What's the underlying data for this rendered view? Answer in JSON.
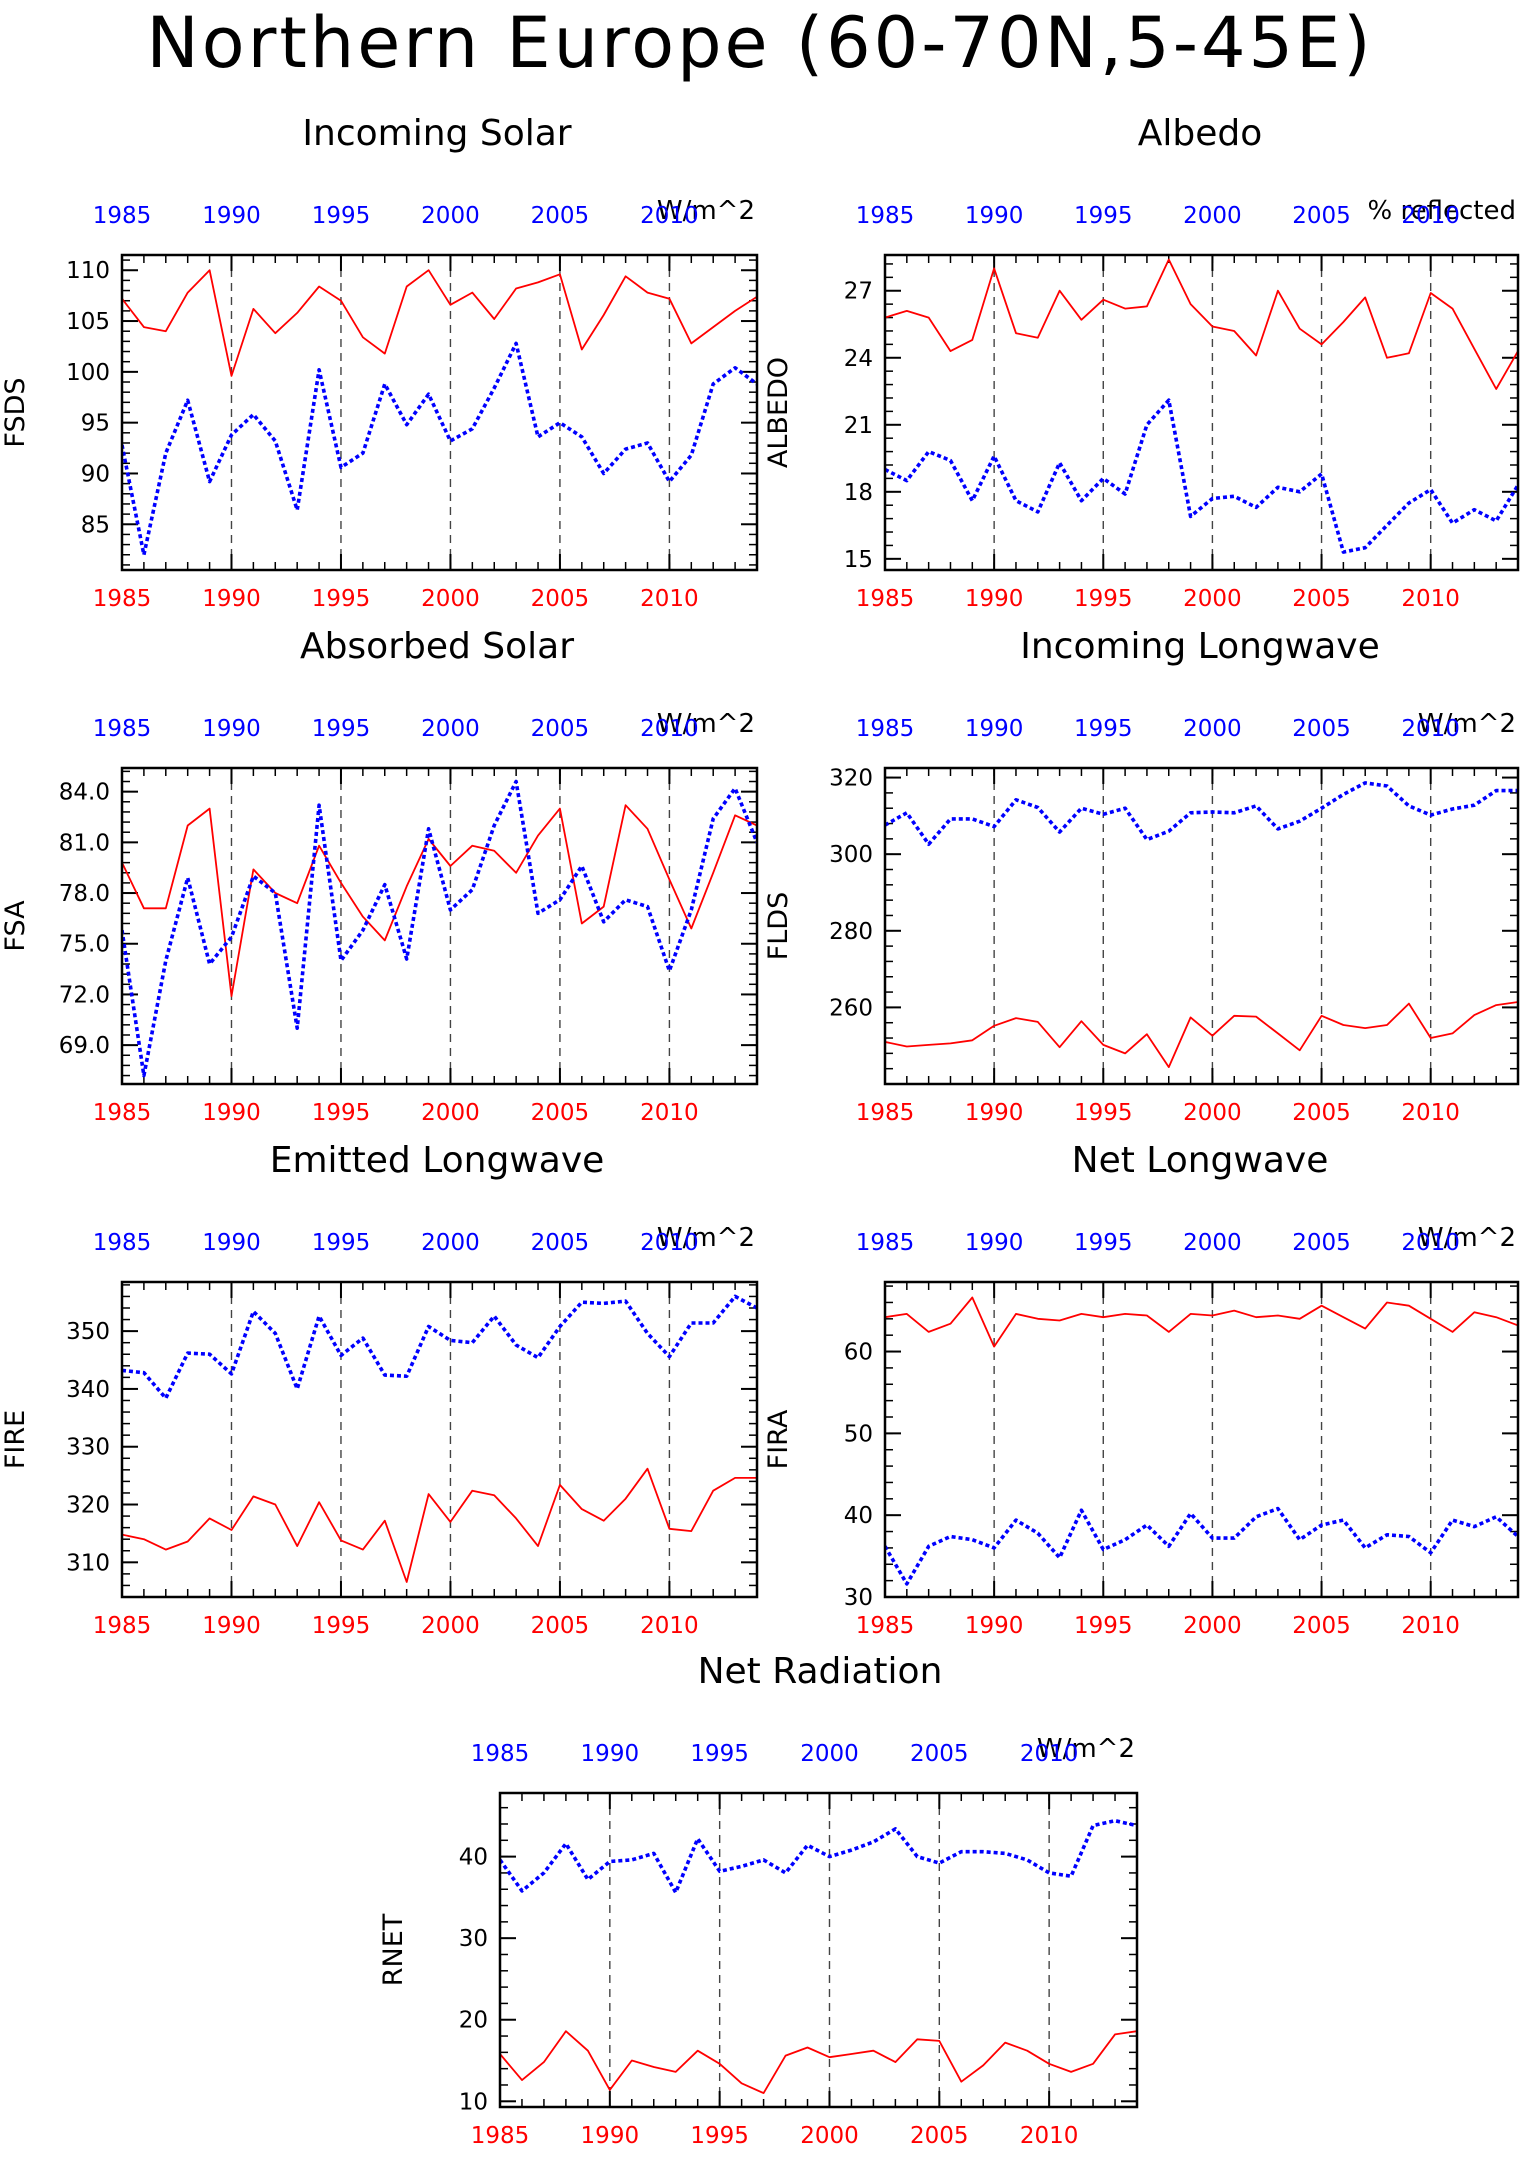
{
  "page": {
    "title": "Northern Europe (60-70N,5-45E)"
  },
  "colors": {
    "top_series": "#0000ff",
    "bottom_series": "#ff0000",
    "axis": "#000000"
  },
  "chart_data": [
    {
      "id": "fsds",
      "type": "line",
      "title": "Incoming Solar",
      "ylabel": "FSDS",
      "units": "W/m^2",
      "x_ticks": [
        1985,
        1990,
        1995,
        2000,
        2005,
        2010
      ],
      "xlim": [
        1985,
        2014
      ],
      "y_ticks": [
        85,
        90,
        95,
        100,
        105,
        110
      ],
      "ylim": [
        80.5,
        111.5
      ],
      "x": [
        1985,
        1986,
        1987,
        1988,
        1989,
        1990,
        1991,
        1992,
        1993,
        1994,
        1995,
        1996,
        1997,
        1998,
        1999,
        2000,
        2001,
        2002,
        2003,
        2004,
        2005,
        2006,
        2007,
        2008,
        2009,
        2010,
        2011,
        2012,
        2013,
        2014
      ],
      "series": [
        {
          "color": "red",
          "style": "solid",
          "values": [
            107.2,
            104.4,
            104.0,
            107.8,
            110.0,
            99.6,
            106.2,
            103.8,
            105.8,
            108.4,
            107.0,
            103.4,
            101.8,
            108.4,
            110.0,
            106.6,
            107.8,
            105.2,
            108.2,
            108.8,
            109.6,
            102.2,
            105.6,
            109.4,
            107.8,
            107.2,
            102.8,
            104.4,
            106.0,
            107.4
          ]
        },
        {
          "color": "blue",
          "style": "dotted",
          "values": [
            92.8,
            82.0,
            92.0,
            97.2,
            89.2,
            93.8,
            95.8,
            93.2,
            86.4,
            100.2,
            90.6,
            92.0,
            98.8,
            94.8,
            97.8,
            93.2,
            94.4,
            98.4,
            102.8,
            93.6,
            95.0,
            93.6,
            90.0,
            92.4,
            93.0,
            89.2,
            91.8,
            98.8,
            100.4,
            98.8
          ]
        }
      ]
    },
    {
      "id": "albedo",
      "type": "line",
      "title": "Albedo",
      "ylabel": "ALBEDO",
      "units": "% reflected",
      "x_ticks": [
        1985,
        1990,
        1995,
        2000,
        2005,
        2010
      ],
      "xlim": [
        1985,
        2014
      ],
      "y_ticks": [
        15,
        18,
        21,
        24,
        27
      ],
      "ylim": [
        14.5,
        28.6
      ],
      "x": [
        1985,
        1986,
        1987,
        1988,
        1989,
        1990,
        1991,
        1992,
        1993,
        1994,
        1995,
        1996,
        1997,
        1998,
        1999,
        2000,
        2001,
        2002,
        2003,
        2004,
        2005,
        2006,
        2007,
        2008,
        2009,
        2010,
        2011,
        2012,
        2013,
        2014
      ],
      "series": [
        {
          "color": "red",
          "style": "solid",
          "values": [
            25.8,
            26.1,
            25.8,
            24.3,
            24.8,
            28.0,
            25.1,
            24.9,
            27.0,
            25.7,
            26.6,
            26.2,
            26.3,
            28.4,
            26.4,
            25.4,
            25.2,
            24.1,
            27.0,
            25.3,
            24.6,
            25.6,
            26.7,
            24.0,
            24.2,
            26.9,
            26.2,
            24.4,
            22.6,
            24.3
          ]
        },
        {
          "color": "blue",
          "style": "dotted",
          "values": [
            19.0,
            18.5,
            19.8,
            19.4,
            17.6,
            19.6,
            17.6,
            17.1,
            19.3,
            17.6,
            18.6,
            17.9,
            21.0,
            22.1,
            16.9,
            17.7,
            17.8,
            17.3,
            18.2,
            18.0,
            18.8,
            15.3,
            15.5,
            16.5,
            17.5,
            18.1,
            16.6,
            17.2,
            16.7,
            18.3
          ]
        }
      ]
    },
    {
      "id": "fsa",
      "type": "line",
      "title": "Absorbed Solar",
      "ylabel": "FSA",
      "units": "W/m^2",
      "x_ticks": [
        1985,
        1990,
        1995,
        2000,
        2005,
        2010
      ],
      "xlim": [
        1985,
        2014
      ],
      "y_ticks": [
        "69.0",
        "72.0",
        "75.0",
        "78.0",
        "81.0",
        "84.0"
      ],
      "ylim": [
        66.7,
        85.4
      ],
      "x": [
        1985,
        1986,
        1987,
        1988,
        1989,
        1990,
        1991,
        1992,
        1993,
        1994,
        1995,
        1996,
        1997,
        1998,
        1999,
        2000,
        2001,
        2002,
        2003,
        2004,
        2005,
        2006,
        2007,
        2008,
        2009,
        2010,
        2011,
        2012,
        2013,
        2014
      ],
      "series": [
        {
          "color": "red",
          "style": "solid",
          "values": [
            79.8,
            77.1,
            77.1,
            82.0,
            83.0,
            71.9,
            79.4,
            78.0,
            77.4,
            80.8,
            78.6,
            76.6,
            75.2,
            78.4,
            81.2,
            79.6,
            80.8,
            80.5,
            79.2,
            81.4,
            83.0,
            76.2,
            77.2,
            83.2,
            81.8,
            78.8,
            75.9,
            79.2,
            82.6,
            82.0
          ]
        },
        {
          "color": "blue",
          "style": "dotted",
          "values": [
            75.8,
            67.2,
            74.0,
            78.9,
            73.8,
            75.4,
            79.0,
            78.0,
            70.0,
            83.2,
            74.0,
            75.8,
            78.5,
            74.1,
            81.8,
            77.0,
            78.2,
            82.0,
            84.6,
            76.8,
            77.6,
            79.6,
            76.3,
            77.6,
            77.2,
            73.4,
            77.0,
            82.4,
            84.2,
            81.0
          ]
        }
      ]
    },
    {
      "id": "flds",
      "type": "line",
      "title": "Incoming Longwave",
      "ylabel": "FLDS",
      "units": "W/m^2",
      "x_ticks": [
        1985,
        1990,
        1995,
        2000,
        2005,
        2010
      ],
      "xlim": [
        1985,
        2014
      ],
      "y_ticks": [
        260,
        280,
        300,
        320
      ],
      "ylim": [
        240,
        322.5
      ],
      "x": [
        1985,
        1986,
        1987,
        1988,
        1989,
        1990,
        1991,
        1992,
        1993,
        1994,
        1995,
        1996,
        1997,
        1998,
        1999,
        2000,
        2001,
        2002,
        2003,
        2004,
        2005,
        2006,
        2007,
        2008,
        2009,
        2010,
        2011,
        2012,
        2013,
        2014
      ],
      "series": [
        {
          "color": "red",
          "style": "solid",
          "values": [
            251.0,
            249.8,
            250.2,
            250.6,
            251.4,
            255.2,
            257.2,
            256.2,
            249.6,
            256.4,
            250.2,
            248.0,
            253.0,
            244.4,
            257.4,
            252.6,
            257.8,
            257.6,
            253.2,
            248.8,
            257.8,
            255.4,
            254.6,
            255.4,
            261.0,
            252.0,
            253.2,
            258.0,
            260.6,
            261.4
          ]
        },
        {
          "color": "blue",
          "style": "dotted",
          "values": [
            307.6,
            310.8,
            302.6,
            309.2,
            309.2,
            307.2,
            314.2,
            312.2,
            305.8,
            312.0,
            310.4,
            312.0,
            303.8,
            306.0,
            310.8,
            311.0,
            310.8,
            312.6,
            306.6,
            308.6,
            312.0,
            315.6,
            318.6,
            317.8,
            312.6,
            310.2,
            311.8,
            312.8,
            316.6,
            316.6
          ]
        }
      ]
    },
    {
      "id": "fire",
      "type": "line",
      "title": "Emitted Longwave",
      "ylabel": "FIRE",
      "units": "W/m^2",
      "x_ticks": [
        1985,
        1990,
        1995,
        2000,
        2005,
        2010
      ],
      "xlim": [
        1985,
        2014
      ],
      "y_ticks": [
        310,
        320,
        330,
        340,
        350
      ],
      "ylim": [
        304,
        358.5
      ],
      "x": [
        1985,
        1986,
        1987,
        1988,
        1989,
        1990,
        1991,
        1992,
        1993,
        1994,
        1995,
        1996,
        1997,
        1998,
        1999,
        2000,
        2001,
        2002,
        2003,
        2004,
        2005,
        2006,
        2007,
        2008,
        2009,
        2010,
        2011,
        2012,
        2013,
        2014
      ],
      "series": [
        {
          "color": "red",
          "style": "solid",
          "values": [
            314.8,
            314.0,
            312.2,
            313.6,
            317.6,
            315.6,
            321.4,
            320.0,
            312.8,
            320.4,
            313.8,
            312.2,
            317.2,
            306.6,
            321.8,
            317.0,
            322.4,
            321.6,
            317.6,
            312.8,
            323.4,
            319.2,
            317.2,
            321.0,
            326.2,
            315.8,
            315.4,
            322.4,
            324.6,
            324.6
          ]
        },
        {
          "color": "blue",
          "style": "dotted",
          "values": [
            343.2,
            342.8,
            338.4,
            346.2,
            346.0,
            342.6,
            353.4,
            349.6,
            340.0,
            352.6,
            345.8,
            348.8,
            342.4,
            342.2,
            350.8,
            348.4,
            348.0,
            352.6,
            347.6,
            345.4,
            350.8,
            355.0,
            354.8,
            355.2,
            349.6,
            345.6,
            351.4,
            351.4,
            356.0,
            354.0
          ]
        }
      ]
    },
    {
      "id": "fira",
      "type": "line",
      "title": "Net Longwave",
      "ylabel": "FIRA",
      "units": "W/m^2",
      "x_ticks": [
        1985,
        1990,
        1995,
        2000,
        2005,
        2010
      ],
      "xlim": [
        1985,
        2014
      ],
      "y_ticks": [
        30,
        40,
        50,
        60
      ],
      "ylim": [
        30,
        68.5
      ],
      "x": [
        1985,
        1986,
        1987,
        1988,
        1989,
        1990,
        1991,
        1992,
        1993,
        1994,
        1995,
        1996,
        1997,
        1998,
        1999,
        2000,
        2001,
        2002,
        2003,
        2004,
        2005,
        2006,
        2007,
        2008,
        2009,
        2010,
        2011,
        2012,
        2013,
        2014
      ],
      "series": [
        {
          "color": "red",
          "style": "solid",
          "values": [
            64.2,
            64.6,
            62.4,
            63.4,
            66.6,
            60.6,
            64.6,
            64.0,
            63.8,
            64.6,
            64.2,
            64.6,
            64.4,
            62.4,
            64.6,
            64.4,
            65.0,
            64.2,
            64.4,
            64.0,
            65.6,
            64.2,
            62.8,
            66.0,
            65.6,
            64.0,
            62.4,
            64.8,
            64.2,
            63.2
          ]
        },
        {
          "color": "blue",
          "style": "dotted",
          "values": [
            36.2,
            31.6,
            36.2,
            37.4,
            37.0,
            36.0,
            39.4,
            37.8,
            34.8,
            40.6,
            35.8,
            37.0,
            38.8,
            36.2,
            40.2,
            37.2,
            37.2,
            39.8,
            40.8,
            37.0,
            38.8,
            39.4,
            36.0,
            37.6,
            37.4,
            35.4,
            39.4,
            38.6,
            39.8,
            37.4
          ]
        }
      ]
    },
    {
      "id": "rnet",
      "type": "line",
      "title": "Net Radiation",
      "ylabel": "RNET",
      "units": "W/m^2",
      "x_ticks": [
        1985,
        1990,
        1995,
        2000,
        2005,
        2010
      ],
      "xlim": [
        1985,
        2014
      ],
      "y_ticks": [
        10,
        20,
        30,
        40
      ],
      "ylim": [
        9.3,
        47.8
      ],
      "x": [
        1985,
        1986,
        1987,
        1988,
        1989,
        1990,
        1991,
        1992,
        1993,
        1994,
        1995,
        1996,
        1997,
        1998,
        1999,
        2000,
        2001,
        2002,
        2003,
        2004,
        2005,
        2006,
        2007,
        2008,
        2009,
        2010,
        2011,
        2012,
        2013,
        2014
      ],
      "series": [
        {
          "color": "red",
          "style": "solid",
          "values": [
            15.8,
            12.6,
            14.8,
            18.6,
            16.2,
            11.4,
            15.0,
            14.2,
            13.6,
            16.2,
            14.6,
            12.2,
            11.0,
            15.6,
            16.6,
            15.4,
            15.8,
            16.2,
            14.8,
            17.6,
            17.4,
            12.4,
            14.4,
            17.2,
            16.2,
            14.6,
            13.6,
            14.6,
            18.2,
            18.6
          ]
        },
        {
          "color": "blue",
          "style": "dotted",
          "values": [
            39.6,
            35.8,
            38.0,
            41.6,
            37.2,
            39.4,
            39.6,
            40.4,
            35.6,
            42.2,
            38.2,
            38.8,
            39.6,
            38.0,
            41.4,
            40.0,
            40.8,
            41.8,
            43.4,
            40.0,
            39.2,
            40.6,
            40.6,
            40.4,
            39.6,
            38.0,
            37.6,
            43.8,
            44.4,
            43.8
          ]
        }
      ]
    }
  ]
}
